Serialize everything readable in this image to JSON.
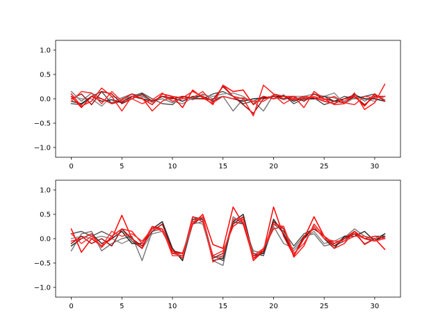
{
  "chart_data": [
    {
      "type": "line",
      "title": "",
      "xlabel": "",
      "ylabel": "",
      "xlim": [
        -1.55,
        32.55
      ],
      "ylim": [
        -1.2,
        1.2
      ],
      "xticks": [
        0,
        5,
        10,
        15,
        20,
        25,
        30
      ],
      "xtick_labels": [
        "0",
        "5",
        "10",
        "15",
        "20",
        "25",
        "30"
      ],
      "yticks": [
        -1.0,
        -0.5,
        0.0,
        0.5,
        1.0
      ],
      "ytick_labels": [
        "−1.0",
        "−0.5",
        "0.0",
        "0.5",
        "1.0"
      ],
      "grid": false,
      "x": [
        0,
        1,
        2,
        3,
        4,
        5,
        6,
        7,
        8,
        9,
        10,
        11,
        12,
        13,
        14,
        15,
        16,
        17,
        18,
        19,
        20,
        21,
        22,
        23,
        24,
        25,
        26,
        27,
        28,
        29,
        30,
        31
      ],
      "series": [
        {
          "color": "#7a7a7a",
          "values": [
            0.15,
            -0.05,
            0.12,
            0.0,
            -0.08,
            0.02,
            0.1,
            0.05,
            -0.05,
            0.0,
            -0.08,
            0.05,
            -0.02,
            0.1,
            0.0,
            0.05,
            -0.25,
            0.0,
            -0.05,
            -0.25,
            0.08,
            0.05,
            0.0,
            -0.02,
            0.0,
            0.05,
            0.02,
            -0.05,
            0.1,
            -0.05,
            0.08,
            -0.02
          ]
        },
        {
          "color": "#555555",
          "values": [
            -0.1,
            -0.12,
            0.05,
            0.15,
            -0.1,
            -0.05,
            0.05,
            0.12,
            0.0,
            -0.1,
            -0.12,
            0.05,
            0.0,
            0.0,
            0.1,
            0.15,
            0.05,
            -0.1,
            -0.05,
            0.05,
            0.0,
            0.08,
            -0.1,
            0.0,
            0.02,
            -0.12,
            -0.05,
            0.05,
            0.0,
            0.05,
            0.1,
            -0.05
          ]
        },
        {
          "color": "#8c8c8c",
          "values": [
            0.05,
            0.0,
            0.0,
            -0.15,
            0.05,
            0.0,
            0.05,
            0.08,
            -0.08,
            0.05,
            -0.05,
            -0.1,
            0.02,
            0.08,
            0.05,
            0.1,
            0.12,
            0.05,
            -0.1,
            0.02,
            0.05,
            -0.02,
            0.05,
            0.05,
            0.1,
            0.05,
            0.12,
            -0.1,
            0.02,
            0.0,
            -0.05,
            0.05
          ]
        },
        {
          "color": "#2a2a2a",
          "values": [
            -0.05,
            -0.1,
            0.05,
            -0.05,
            -0.02,
            -0.08,
            0.05,
            0.0,
            -0.05,
            0.05,
            0.02,
            -0.05,
            0.05,
            0.05,
            -0.05,
            0.05,
            0.0,
            -0.05,
            0.0,
            0.02,
            0.05,
            0.05,
            -0.05,
            0.02,
            0.0,
            0.05,
            -0.05,
            0.0,
            0.08,
            0.0,
            0.0,
            -0.05
          ]
        },
        {
          "color": "#a01010",
          "values": [
            0.0,
            0.1,
            -0.12,
            0.15,
            0.1,
            -0.1,
            0.0,
            0.1,
            -0.05,
            0.05,
            0.0,
            0.05,
            0.02,
            0.0,
            -0.02,
            0.25,
            0.05,
            -0.12,
            -0.3,
            0.0,
            0.05,
            0.0,
            0.05,
            -0.05,
            0.1,
            0.0,
            -0.05,
            -0.08,
            0.05,
            -0.12,
            0.05,
            0.05
          ]
        },
        {
          "color": "#ff0000",
          "values": [
            0.05,
            -0.18,
            0.05,
            0.0,
            -0.1,
            -0.02,
            0.1,
            0.0,
            -0.12,
            0.1,
            0.05,
            -0.18,
            0.18,
            0.02,
            -0.1,
            0.28,
            0.15,
            0.18,
            -0.12,
            0.05,
            0.0,
            0.05,
            -0.02,
            0.05,
            0.02,
            -0.05,
            -0.1,
            0.0,
            0.05,
            -0.15,
            0.1,
            -0.05
          ]
        },
        {
          "color": "#ff1a1a",
          "values": [
            0.1,
            -0.15,
            -0.05,
            0.22,
            0.05,
            -0.25,
            0.05,
            0.02,
            -0.25,
            -0.05,
            0.05,
            0.02,
            0.15,
            0.05,
            -0.12,
            0.28,
            0.05,
            0.0,
            -0.35,
            0.28,
            0.1,
            0.05,
            0.05,
            -0.18,
            0.15,
            0.0,
            -0.12,
            -0.1,
            0.12,
            -0.22,
            -0.08,
            0.3
          ]
        },
        {
          "color": "#ff2b2b",
          "values": [
            -0.05,
            0.15,
            0.12,
            -0.1,
            0.15,
            -0.05,
            0.0,
            -0.1,
            -0.02,
            0.12,
            -0.05,
            0.0,
            0.02,
            0.15,
            -0.08,
            0.05,
            0.0,
            0.02,
            -0.05,
            -0.05,
            0.08,
            -0.1,
            0.02,
            0.0,
            0.05,
            -0.02,
            0.05,
            -0.08,
            -0.12,
            0.05,
            0.02,
            0.05
          ]
        }
      ]
    },
    {
      "type": "line",
      "title": "",
      "xlabel": "",
      "ylabel": "",
      "xlim": [
        -1.55,
        32.55
      ],
      "ylim": [
        -1.2,
        1.2
      ],
      "xticks": [
        0,
        5,
        10,
        15,
        20,
        25,
        30
      ],
      "xtick_labels": [
        "0",
        "5",
        "10",
        "15",
        "20",
        "25",
        "30"
      ],
      "yticks": [
        -1.0,
        -0.5,
        0.0,
        0.5,
        1.0
      ],
      "ytick_labels": [
        "−1.0",
        "−0.5",
        "0.0",
        "0.5",
        "1.0"
      ],
      "grid": false,
      "x": [
        0,
        1,
        2,
        3,
        4,
        5,
        6,
        7,
        8,
        9,
        10,
        11,
        12,
        13,
        14,
        15,
        16,
        17,
        18,
        19,
        20,
        21,
        22,
        23,
        24,
        25,
        26,
        27,
        28,
        29,
        30,
        31
      ],
      "series": [
        {
          "color": "#7a7a7a",
          "values": [
            -0.25,
            0.1,
            0.15,
            -0.25,
            -0.1,
            0.0,
            0.05,
            -0.45,
            0.15,
            0.2,
            -0.2,
            -0.45,
            0.3,
            0.35,
            -0.45,
            -0.55,
            0.45,
            0.3,
            -0.25,
            -0.3,
            0.25,
            -0.1,
            -0.2,
            0.05,
            0.1,
            -0.15,
            -0.1,
            0.02,
            0.2,
            0.05,
            0.0,
            0.02
          ]
        },
        {
          "color": "#555555",
          "values": [
            0.1,
            0.15,
            0.05,
            0.15,
            0.05,
            0.2,
            -0.05,
            -0.2,
            0.25,
            0.2,
            -0.3,
            -0.35,
            0.45,
            0.4,
            -0.35,
            -0.45,
            0.35,
            0.3,
            -0.3,
            -0.35,
            0.3,
            0.15,
            -0.15,
            0.1,
            0.2,
            0.05,
            -0.15,
            -0.05,
            0.15,
            0.0,
            0.05,
            0.05
          ]
        },
        {
          "color": "#8c8c8c",
          "values": [
            0.0,
            0.05,
            0.0,
            0.05,
            0.0,
            -0.1,
            0.0,
            -0.2,
            0.1,
            0.15,
            -0.25,
            -0.3,
            0.35,
            0.3,
            -0.4,
            -0.35,
            0.4,
            0.35,
            -0.35,
            -0.25,
            0.35,
            0.1,
            -0.25,
            0.0,
            0.15,
            -0.1,
            -0.05,
            0.05,
            0.1,
            -0.1,
            0.0,
            0.1
          ]
        },
        {
          "color": "#2a2a2a",
          "values": [
            -0.15,
            0.0,
            0.1,
            -0.1,
            0.0,
            0.15,
            -0.1,
            -0.1,
            0.2,
            0.35,
            -0.2,
            -0.45,
            0.4,
            0.4,
            -0.45,
            -0.4,
            0.35,
            0.5,
            -0.35,
            -0.3,
            0.4,
            0.1,
            -0.35,
            0.0,
            0.25,
            0.0,
            -0.2,
            0.05,
            0.05,
            0.15,
            -0.05,
            0.1
          ]
        },
        {
          "color": "#a01010",
          "values": [
            -0.1,
            0.05,
            -0.1,
            0.0,
            -0.15,
            0.2,
            0.0,
            -0.15,
            0.15,
            0.3,
            -0.25,
            -0.3,
            0.3,
            0.45,
            -0.4,
            -0.3,
            0.3,
            0.45,
            -0.45,
            -0.25,
            0.35,
            0.2,
            -0.35,
            0.05,
            0.2,
            0.05,
            -0.15,
            0.0,
            0.1,
            0.0,
            -0.05,
            0.05
          ]
        },
        {
          "color": "#ff0000",
          "values": [
            0.2,
            -0.28,
            0.0,
            -0.15,
            0.0,
            0.48,
            0.0,
            -0.2,
            0.25,
            0.2,
            -0.3,
            -0.3,
            0.3,
            0.5,
            -0.12,
            -0.2,
            0.65,
            0.3,
            -0.4,
            -0.25,
            0.65,
            0.05,
            -0.35,
            0.0,
            0.45,
            0.05,
            -0.1,
            0.0,
            0.15,
            -0.12,
            0.0,
            -0.22
          ]
        },
        {
          "color": "#ff1a1a",
          "values": [
            -0.05,
            0.0,
            0.1,
            -0.18,
            0.05,
            0.2,
            0.15,
            -0.1,
            0.25,
            0.15,
            -0.25,
            -0.4,
            0.45,
            0.35,
            -0.35,
            -0.25,
            0.25,
            0.4,
            -0.45,
            -0.2,
            0.2,
            0.25,
            -0.38,
            -0.15,
            0.3,
            0.05,
            -0.2,
            -0.1,
            0.15,
            0.0,
            0.05,
            0.0
          ]
        },
        {
          "color": "#ff3333",
          "values": [
            0.1,
            -0.1,
            0.05,
            -0.15,
            0.15,
            0.05,
            0.1,
            -0.05,
            0.2,
            0.2,
            -0.35,
            -0.35,
            0.35,
            0.45,
            -0.48,
            -0.35,
            0.4,
            0.4,
            -0.35,
            -0.2,
            0.3,
            0.25,
            -0.3,
            -0.1,
            0.25,
            0.0,
            -0.05,
            -0.05,
            0.05,
            0.05,
            -0.05,
            0.0
          ]
        }
      ]
    }
  ]
}
